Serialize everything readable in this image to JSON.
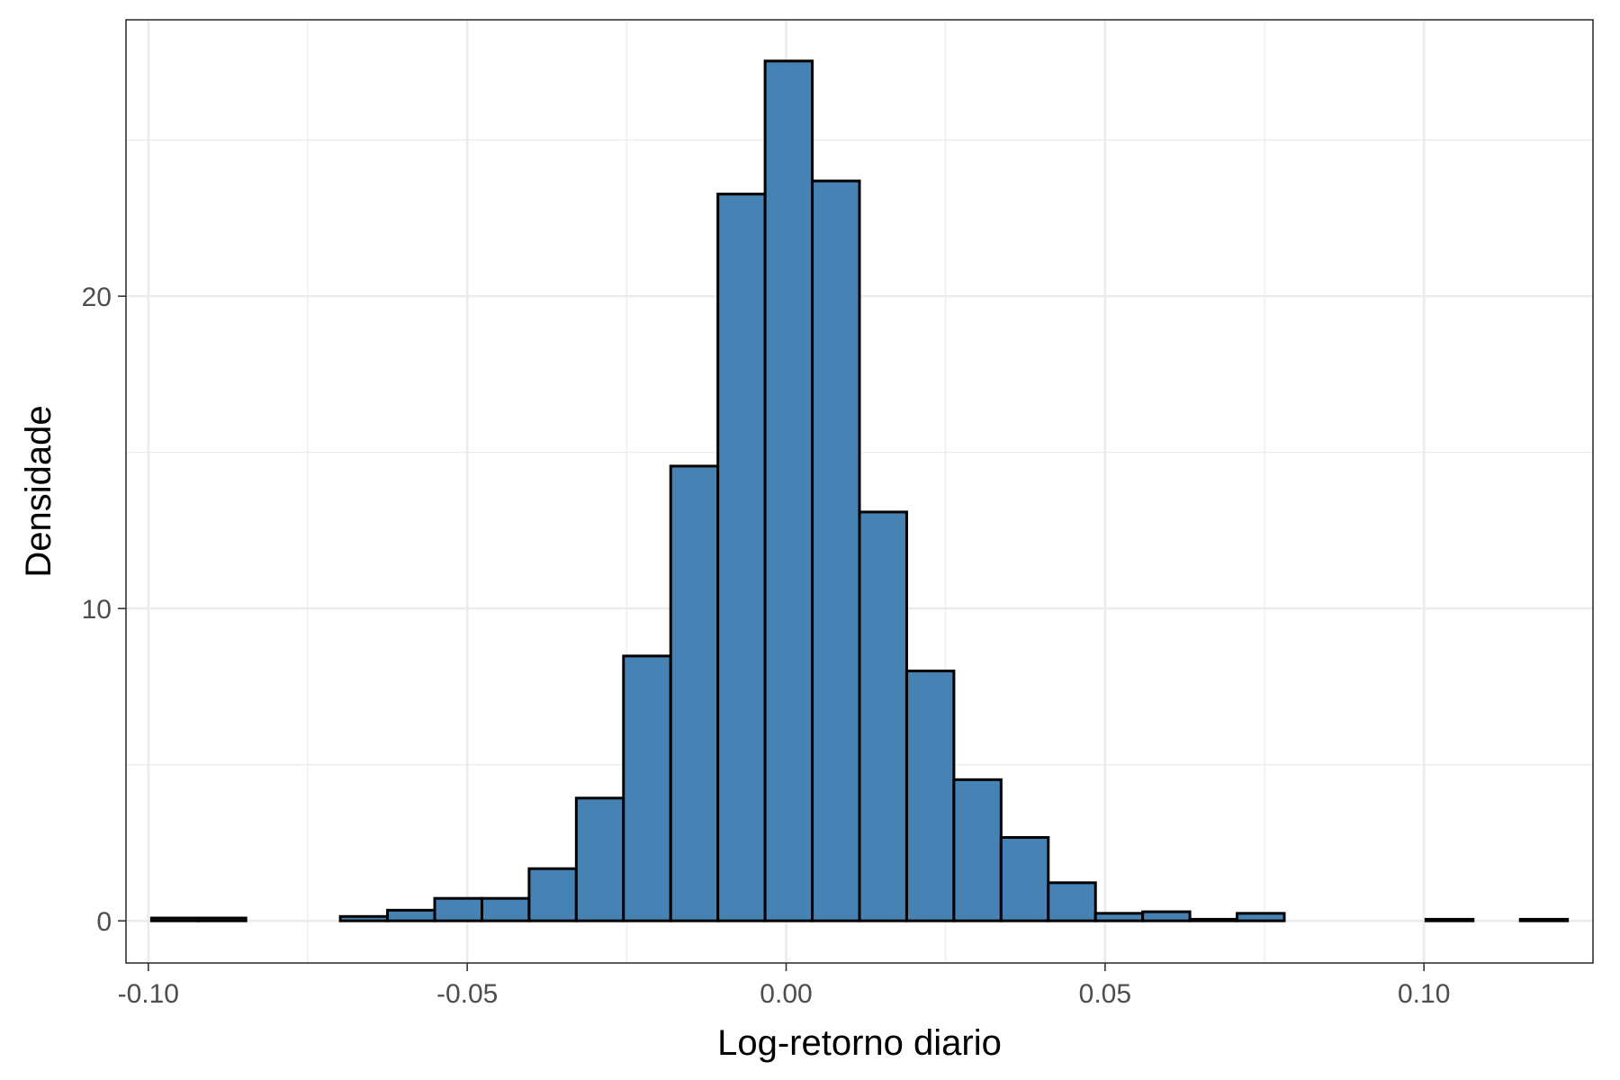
{
  "chart_data": {
    "type": "bar",
    "subtype": "histogram",
    "xlabel": "Log-retorno diario",
    "ylabel": "Densidade",
    "xlim": [
      -0.1035,
      0.1265
    ],
    "ylim": [
      -1.35,
      28.85
    ],
    "x_ticks": [
      {
        "value": -0.1,
        "label": "-0.10"
      },
      {
        "value": -0.05,
        "label": "-0.05"
      },
      {
        "value": 0.0,
        "label": "0.00"
      },
      {
        "value": 0.05,
        "label": "0.05"
      },
      {
        "value": 0.1,
        "label": "0.10"
      }
    ],
    "y_ticks": [
      {
        "value": 0,
        "label": "0"
      },
      {
        "value": 10,
        "label": "10"
      },
      {
        "value": 20,
        "label": "20"
      }
    ],
    "y_minor_ticks": [
      5,
      15,
      25
    ],
    "x_minor_ticks": [
      -0.075,
      -0.025,
      0.025,
      0.075
    ],
    "grid": true,
    "theme": "bw",
    "bar_fill": "#4682b4",
    "bar_outline": "#000000",
    "bins": [
      {
        "x0": -0.0995,
        "x1": -0.0921,
        "density": 0.09
      },
      {
        "x0": -0.0921,
        "x1": -0.0847,
        "density": 0.09
      },
      {
        "x0": -0.0847,
        "x1": -0.0773,
        "density": 0.0
      },
      {
        "x0": -0.0773,
        "x1": -0.0699,
        "density": 0.0
      },
      {
        "x0": -0.0699,
        "x1": -0.0625,
        "density": 0.14
      },
      {
        "x0": -0.0625,
        "x1": -0.0551,
        "density": 0.34
      },
      {
        "x0": -0.0551,
        "x1": -0.0477,
        "density": 0.72
      },
      {
        "x0": -0.0477,
        "x1": -0.0403,
        "density": 0.72
      },
      {
        "x0": -0.0403,
        "x1": -0.0329,
        "density": 1.67
      },
      {
        "x0": -0.0329,
        "x1": -0.0255,
        "density": 3.93
      },
      {
        "x0": -0.0255,
        "x1": -0.0181,
        "density": 8.48
      },
      {
        "x0": -0.0181,
        "x1": -0.0107,
        "density": 14.56
      },
      {
        "x0": -0.0107,
        "x1": -0.0033,
        "density": 23.27
      },
      {
        "x0": -0.0033,
        "x1": 0.0041,
        "density": 27.53
      },
      {
        "x0": 0.0041,
        "x1": 0.0115,
        "density": 23.69
      },
      {
        "x0": 0.0115,
        "x1": 0.0189,
        "density": 13.09
      },
      {
        "x0": 0.0189,
        "x1": 0.0263,
        "density": 8.0
      },
      {
        "x0": 0.0263,
        "x1": 0.0337,
        "density": 4.52
      },
      {
        "x0": 0.0337,
        "x1": 0.0411,
        "density": 2.67
      },
      {
        "x0": 0.0411,
        "x1": 0.0485,
        "density": 1.22
      },
      {
        "x0": 0.0485,
        "x1": 0.0559,
        "density": 0.24
      },
      {
        "x0": 0.0559,
        "x1": 0.0633,
        "density": 0.29
      },
      {
        "x0": 0.0633,
        "x1": 0.0707,
        "density": 0.05
      },
      {
        "x0": 0.0707,
        "x1": 0.0781,
        "density": 0.24
      },
      {
        "x0": 0.0781,
        "x1": 0.0855,
        "density": 0.0
      },
      {
        "x0": 0.0855,
        "x1": 0.0929,
        "density": 0.0
      },
      {
        "x0": 0.0929,
        "x1": 0.1003,
        "density": 0.0
      },
      {
        "x0": 0.1003,
        "x1": 0.1077,
        "density": 0.05
      },
      {
        "x0": 0.1077,
        "x1": 0.1151,
        "density": 0.0
      },
      {
        "x0": 0.1151,
        "x1": 0.1225,
        "density": 0.05
      }
    ]
  }
}
